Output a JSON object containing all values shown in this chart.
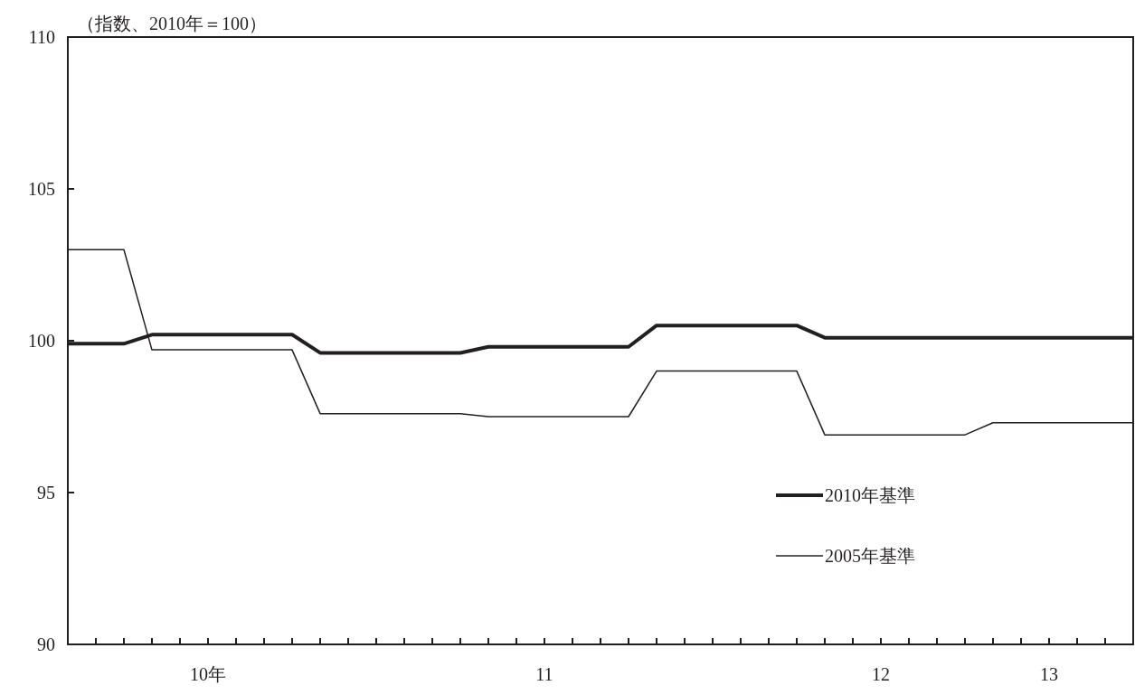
{
  "chart_data": {
    "type": "line",
    "ylabel": "（指数、2010年＝100）",
    "categories": [
      null,
      null,
      null,
      null,
      null,
      "10年",
      null,
      null,
      null,
      null,
      null,
      null,
      null,
      null,
      null,
      null,
      null,
      "11",
      null,
      null,
      null,
      null,
      null,
      null,
      null,
      null,
      null,
      null,
      null,
      "12",
      null,
      null,
      null,
      null,
      null,
      "13",
      null,
      null,
      null
    ],
    "series": [
      {
        "name": "2010年基準",
        "color": "#231f20",
        "values": [
          99.9,
          99.9,
          99.9,
          100.2,
          100.2,
          100.2,
          100.2,
          100.2,
          100.2,
          99.6,
          99.6,
          99.6,
          99.6,
          99.6,
          99.6,
          99.8,
          99.8,
          99.8,
          99.8,
          99.8,
          99.8,
          100.5,
          100.5,
          100.5,
          100.5,
          100.5,
          100.5,
          100.1,
          100.1,
          100.1,
          100.1,
          100.1,
          100.1,
          100.1,
          100.1,
          100.1,
          100.1,
          100.1,
          100.1
        ]
      },
      {
        "name": "2005年基準",
        "color": "#231f20",
        "values": [
          103.0,
          103.0,
          103.0,
          99.7,
          99.7,
          99.7,
          99.7,
          99.7,
          99.7,
          97.6,
          97.6,
          97.6,
          97.6,
          97.6,
          97.6,
          97.5,
          97.5,
          97.5,
          97.5,
          97.5,
          97.5,
          99.0,
          99.0,
          99.0,
          99.0,
          99.0,
          99.0,
          96.9,
          96.9,
          96.9,
          96.9,
          96.9,
          96.9,
          97.3,
          97.3,
          97.3,
          97.3,
          97.3,
          97.3
        ]
      }
    ],
    "ylim": [
      90,
      110
    ],
    "yticks": [
      90,
      95,
      100,
      105,
      110
    ],
    "grid": false,
    "legend": "bottom right",
    "marker": "none",
    "line_style": "solid"
  }
}
